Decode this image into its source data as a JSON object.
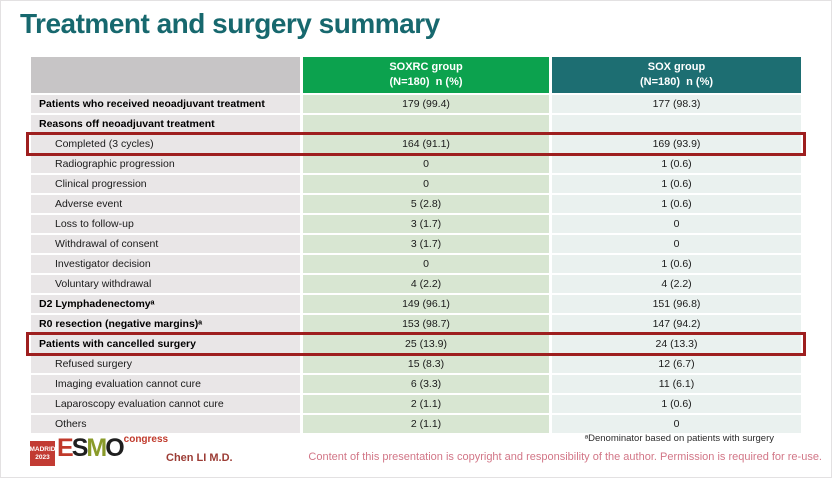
{
  "slide": {
    "title": "Treatment and surgery summary"
  },
  "table": {
    "header": {
      "soxrc_line1": "SOXRC group",
      "soxrc_line2": "(N=180)  n (%)",
      "sox_line1": "SOX group",
      "sox_line2": "(N=180)  n (%)"
    },
    "rows": [
      {
        "label": "Patients who received neoadjuvant treatment",
        "soxrc": "179 (99.4)",
        "sox": "177 (98.3)"
      },
      {
        "label": "Reasons off neoadjuvant treatment",
        "soxrc": "",
        "sox": ""
      },
      {
        "label": "Completed (3 cycles)",
        "soxrc": "164 (91.1)",
        "sox": "169 (93.9)"
      },
      {
        "label": "Radiographic progression",
        "soxrc": "0",
        "sox": "1 (0.6)"
      },
      {
        "label": "Clinical progression",
        "soxrc": "0",
        "sox": "1 (0.6)"
      },
      {
        "label": "Adverse event",
        "soxrc": "5 (2.8)",
        "sox": "1 (0.6)"
      },
      {
        "label": "Loss to follow-up",
        "soxrc": "3 (1.7)",
        "sox": "0"
      },
      {
        "label": "Withdrawal of consent",
        "soxrc": "3 (1.7)",
        "sox": "0"
      },
      {
        "label": "Investigator decision",
        "soxrc": "0",
        "sox": "1 (0.6)"
      },
      {
        "label": "Voluntary withdrawal",
        "soxrc": "4 (2.2)",
        "sox": "4 (2.2)"
      },
      {
        "label": "D2 Lymphadenectomyᵃ",
        "soxrc": "149 (96.1)",
        "sox": "151 (96.8)"
      },
      {
        "label": "R0 resection (negative margins)ᵃ",
        "soxrc": "153 (98.7)",
        "sox": "147 (94.2)"
      },
      {
        "label": "Patients with cancelled surgery",
        "soxrc": "25 (13.9)",
        "sox": "24 (13.3)"
      },
      {
        "label": "Refused surgery",
        "soxrc": "15 (8.3)",
        "sox": "12 (6.7)"
      },
      {
        "label": "Imaging evaluation cannot cure",
        "soxrc": "6 (3.3)",
        "sox": "11 (6.1)"
      },
      {
        "label": "Laparoscopy evaluation cannot cure",
        "soxrc": "2 (1.1)",
        "sox": "1 (0.6)"
      },
      {
        "label": "Others",
        "soxrc": "2 (1.1)",
        "sox": "0"
      }
    ]
  },
  "footer": {
    "logo": {
      "badge_line1": "MADRID",
      "badge_line2": "2023",
      "letter_e": "E",
      "letter_s": "S",
      "letter_m": "M",
      "letter_o": "O",
      "congress": "congress"
    },
    "author": "Chen LI M.D.",
    "footnote": "ᵃDenominator based on patients with surgery",
    "copyright": "Content of this presentation is copyright and responsibility of the author. Permission is required for re-use."
  },
  "colors": {
    "title": "#17686e",
    "header_soxrc": "#0ca24e",
    "header_sox": "#1d6e72",
    "header_empty": "#c7c5c6",
    "label_cell": "#e9e6e7",
    "soxrc_cell": "#d8e6d2",
    "sox_cell": "#eaf1ef",
    "highlight_border": "#9e1f1f",
    "author": "#9c3c35",
    "copyright": "#d27687"
  }
}
